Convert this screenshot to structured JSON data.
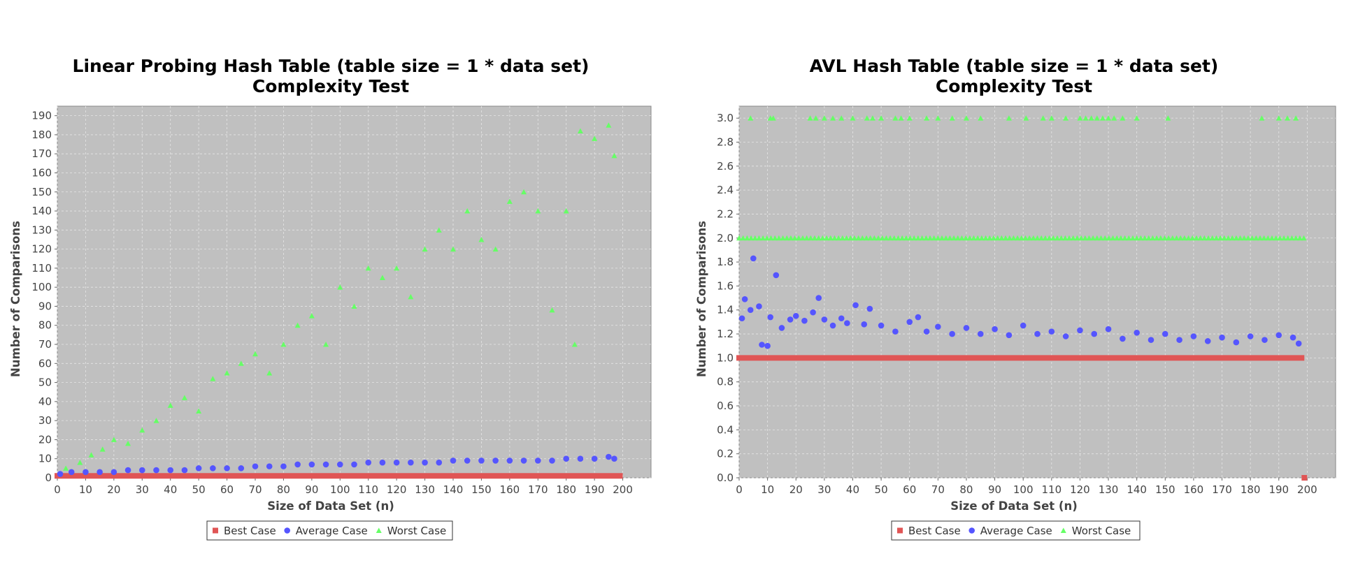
{
  "chart_data": [
    {
      "type": "scatter",
      "title_lines": [
        "Linear Probing Hash Table (table size = 1 * data set)",
        "Complexity Test"
      ],
      "xlabel": "Size of Data Set (n)",
      "ylabel": "Number of Comparisons",
      "xlim": [
        0,
        210
      ],
      "ylim": [
        0,
        195
      ],
      "x_ticks": [
        "0",
        "10",
        "20",
        "30",
        "40",
        "50",
        "60",
        "70",
        "80",
        "90",
        "100",
        "110",
        "120",
        "130",
        "140",
        "150",
        "160",
        "170",
        "180",
        "190",
        "200"
      ],
      "y_ticks": [
        "0",
        "10",
        "20",
        "30",
        "40",
        "50",
        "60",
        "70",
        "80",
        "90",
        "100",
        "110",
        "120",
        "130",
        "140",
        "150",
        "160",
        "170",
        "180",
        "190"
      ],
      "grid": true,
      "legend_position": "bottom",
      "series": [
        {
          "name": "Best Case",
          "color": "#e05555",
          "marker": "square",
          "x": [
            0,
            5,
            10,
            15,
            20,
            25,
            30,
            35,
            40,
            45,
            50,
            55,
            60,
            65,
            70,
            75,
            80,
            85,
            90,
            95,
            100,
            105,
            110,
            115,
            120,
            125,
            130,
            135,
            140,
            145,
            150,
            155,
            160,
            165,
            170,
            175,
            180,
            185,
            190,
            195,
            199
          ],
          "y": [
            1,
            1,
            1,
            1,
            1,
            1,
            1,
            1,
            1,
            1,
            1,
            1,
            1,
            1,
            1,
            1,
            1,
            1,
            1,
            1,
            1,
            1,
            1,
            1,
            1,
            1,
            1,
            1,
            1,
            1,
            1,
            1,
            1,
            1,
            1,
            1,
            1,
            1,
            1,
            1,
            1
          ]
        },
        {
          "name": "Average Case",
          "color": "#5555ff",
          "marker": "circle",
          "x": [
            1,
            5,
            10,
            15,
            20,
            25,
            30,
            35,
            40,
            45,
            50,
            55,
            60,
            65,
            70,
            75,
            80,
            85,
            90,
            95,
            100,
            105,
            110,
            115,
            120,
            125,
            130,
            135,
            140,
            145,
            150,
            155,
            160,
            165,
            170,
            175,
            180,
            185,
            190,
            195,
            197
          ],
          "y": [
            2,
            3,
            3,
            3,
            3,
            4,
            4,
            4,
            4,
            4,
            5,
            5,
            5,
            5,
            6,
            6,
            6,
            7,
            7,
            7,
            7,
            7,
            8,
            8,
            8,
            8,
            8,
            8,
            9,
            9,
            9,
            9,
            9,
            9,
            9,
            9,
            10,
            10,
            10,
            11,
            10
          ]
        },
        {
          "name": "Worst Case",
          "color": "#66ff66",
          "marker": "triangle",
          "x": [
            3,
            8,
            12,
            16,
            20,
            25,
            30,
            35,
            40,
            45,
            50,
            55,
            60,
            65,
            70,
            75,
            80,
            85,
            90,
            95,
            100,
            105,
            110,
            115,
            120,
            125,
            130,
            135,
            140,
            145,
            150,
            155,
            160,
            165,
            170,
            175,
            180,
            183,
            185,
            190,
            195,
            197
          ],
          "y": [
            5,
            8,
            12,
            15,
            20,
            18,
            25,
            30,
            38,
            42,
            35,
            52,
            55,
            60,
            65,
            55,
            70,
            80,
            85,
            70,
            100,
            90,
            110,
            105,
            110,
            95,
            120,
            130,
            120,
            140,
            125,
            120,
            145,
            150,
            140,
            88,
            140,
            70,
            182,
            178,
            185,
            169
          ]
        }
      ]
    },
    {
      "type": "scatter",
      "title_lines": [
        "AVL Hash Table (table size = 1 * data set)",
        "Complexity Test"
      ],
      "xlabel": "Size of Data Set (n)",
      "ylabel": "Number of Comparisons",
      "xlim": [
        0,
        210
      ],
      "ylim": [
        0,
        3.1
      ],
      "x_ticks": [
        "0",
        "10",
        "20",
        "30",
        "40",
        "50",
        "60",
        "70",
        "80",
        "90",
        "100",
        "110",
        "120",
        "130",
        "140",
        "150",
        "160",
        "170",
        "180",
        "190",
        "200"
      ],
      "y_ticks": [
        "0.0",
        "0.2",
        "0.4",
        "0.6",
        "0.8",
        "1.0",
        "1.2",
        "1.4",
        "1.6",
        "1.8",
        "2.0",
        "2.2",
        "2.4",
        "2.6",
        "2.8",
        "3.0"
      ],
      "grid": true,
      "legend_position": "bottom",
      "series": [
        {
          "name": "Best Case",
          "color": "#e05555",
          "marker": "square",
          "x": [
            0,
            5,
            10,
            15,
            20,
            25,
            30,
            35,
            40,
            45,
            50,
            55,
            60,
            65,
            70,
            75,
            80,
            85,
            90,
            95,
            100,
            105,
            110,
            115,
            120,
            125,
            130,
            135,
            140,
            145,
            150,
            155,
            160,
            165,
            170,
            175,
            180,
            185,
            190,
            195,
            198,
            199
          ],
          "y": [
            1,
            1,
            1,
            1,
            1,
            1,
            1,
            1,
            1,
            1,
            1,
            1,
            1,
            1,
            1,
            1,
            1,
            1,
            1,
            1,
            1,
            1,
            1,
            1,
            1,
            1,
            1,
            1,
            1,
            1,
            1,
            1,
            1,
            1,
            1,
            1,
            1,
            1,
            1,
            1,
            1,
            0
          ]
        },
        {
          "name": "Average Case",
          "color": "#5555ff",
          "marker": "circle",
          "x": [
            1,
            2,
            4,
            5,
            7,
            8,
            10,
            11,
            13,
            15,
            18,
            20,
            23,
            26,
            28,
            30,
            33,
            36,
            38,
            41,
            44,
            46,
            50,
            55,
            60,
            63,
            66,
            70,
            75,
            80,
            85,
            90,
            95,
            100,
            105,
            110,
            115,
            120,
            125,
            130,
            135,
            140,
            145,
            150,
            155,
            160,
            165,
            170,
            175,
            180,
            185,
            190,
            195,
            197
          ],
          "y": [
            1.33,
            1.49,
            1.4,
            1.83,
            1.43,
            1.11,
            1.1,
            1.34,
            1.69,
            1.25,
            1.32,
            1.35,
            1.31,
            1.38,
            1.5,
            1.32,
            1.27,
            1.33,
            1.29,
            1.44,
            1.28,
            1.41,
            1.27,
            1.22,
            1.3,
            1.34,
            1.22,
            1.26,
            1.2,
            1.25,
            1.2,
            1.24,
            1.19,
            1.27,
            1.2,
            1.22,
            1.18,
            1.23,
            1.2,
            1.24,
            1.16,
            1.21,
            1.15,
            1.2,
            1.15,
            1.18,
            1.14,
            1.17,
            1.13,
            1.18,
            1.15,
            1.19,
            1.17,
            1.12
          ]
        },
        {
          "name": "Worst Case",
          "color": "#66ff66",
          "marker": "triangle",
          "x": [
            4,
            11,
            12,
            25,
            27,
            30,
            33,
            36,
            40,
            45,
            47,
            50,
            55,
            57,
            60,
            66,
            70,
            75,
            80,
            85,
            95,
            101,
            107,
            110,
            115,
            120,
            122,
            124,
            126,
            128,
            130,
            132,
            135,
            140,
            151,
            184,
            190,
            193,
            196
          ],
          "y": [
            3,
            3,
            3,
            3,
            3,
            3,
            3,
            3,
            3,
            3,
            3,
            3,
            3,
            3,
            3,
            3,
            3,
            3,
            3,
            3,
            3,
            3,
            3,
            3,
            3,
            3,
            3,
            3,
            3,
            3,
            3,
            3,
            3,
            3,
            3,
            3,
            3,
            3,
            3
          ],
          "x2_start": 0,
          "x2_end": 199,
          "y2": 2
        }
      ]
    }
  ]
}
